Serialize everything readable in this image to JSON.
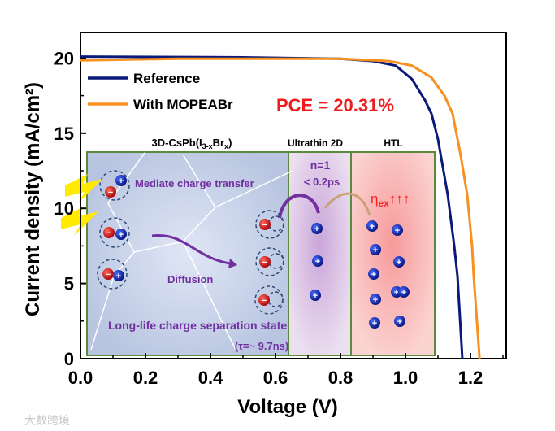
{
  "chart_data": {
    "type": "line",
    "xlabel": "Voltage (V)",
    "ylabel": "Current density (mA/cm²)",
    "xlim": [
      0,
      1.31
    ],
    "ylim": [
      0,
      21.7
    ],
    "xticks": [
      "0.0",
      "0.2",
      "0.4",
      "0.6",
      "0.8",
      "1.0",
      "1.2"
    ],
    "xtick_values": [
      0,
      0.2,
      0.4,
      0.6,
      0.8,
      1.0,
      1.2
    ],
    "yticks": [
      "0",
      "5",
      "10",
      "15",
      "20"
    ],
    "ytick_values": [
      0,
      5,
      10,
      15,
      20
    ],
    "legend_position": "top-left",
    "series": [
      {
        "name": "Reference",
        "color": "#0b1a7a",
        "x": [
          0,
          0.5,
          0.8,
          0.9,
          0.97,
          1.02,
          1.06,
          1.08,
          1.1,
          1.13,
          1.15,
          1.16,
          1.175
        ],
        "y": [
          20.1,
          20.05,
          19.95,
          19.8,
          19.5,
          18.6,
          17.2,
          16.3,
          14.6,
          10.9,
          7.5,
          5.5,
          0
        ]
      },
      {
        "name": "With MOPEABr",
        "color": "#f7901e",
        "x": [
          0,
          0.3,
          0.8,
          0.95,
          1.02,
          1.08,
          1.12,
          1.145,
          1.17,
          1.19,
          1.205,
          1.21,
          1.228
        ],
        "y": [
          19.85,
          19.95,
          19.95,
          19.8,
          19.5,
          18.7,
          17.5,
          16.3,
          13.5,
          10.9,
          7.5,
          5.5,
          0
        ]
      }
    ],
    "annotation": "PCE = 20.31%"
  },
  "inset": {
    "label_3d": "3D-CsPb(I",
    "label_3d_sub1": "3-x",
    "label_3d_mid": "Br",
    "label_3d_sub2": "x",
    "label_3d_end": ")",
    "label_2d": "Ultrathin 2D",
    "label_htl": "HTL",
    "n1": "n=1",
    "time": "< 0.2ps",
    "mediate": "Mediate charge transfer",
    "diffusion": "Diffusion",
    "longlife": "Long-life charge separation state",
    "tau": "(τ=~ 9.7ns)",
    "eta": "η",
    "eta_sub": "ex",
    "arrows": "↑↑↑",
    "plus": "+",
    "minus": "−"
  },
  "watermark": "大数跨境"
}
